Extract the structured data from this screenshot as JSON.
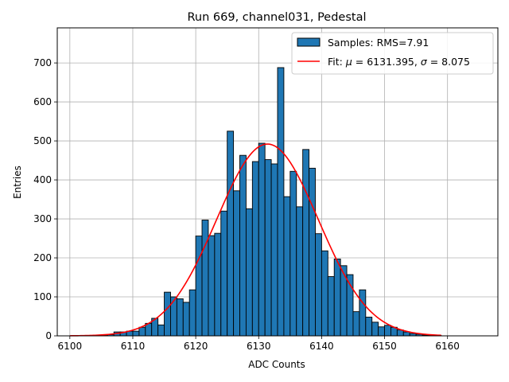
{
  "chart_data": {
    "type": "bar",
    "title": "Run 669, channel031, Pedestal",
    "xlabel": "ADC Counts",
    "ylabel": "Entries",
    "xlim": [
      6098,
      6168
    ],
    "ylim": [
      0,
      790
    ],
    "xticks": [
      6100,
      6110,
      6120,
      6130,
      6140,
      6150,
      6160
    ],
    "yticks": [
      0,
      100,
      200,
      300,
      400,
      500,
      600,
      700
    ],
    "grid": true,
    "legend_position": "top-right",
    "bin_width": 1,
    "bins": [
      6103,
      6104,
      6105,
      6106,
      6107,
      6108,
      6109,
      6110,
      6111,
      6112,
      6113,
      6114,
      6115,
      6116,
      6117,
      6118,
      6119,
      6120,
      6121,
      6122,
      6123,
      6124,
      6125,
      6126,
      6127,
      6128,
      6129,
      6130,
      6131,
      6132,
      6133,
      6134,
      6135,
      6136,
      6137,
      6138,
      6139,
      6140,
      6141,
      6142,
      6143,
      6144,
      6145,
      6146,
      6147,
      6148,
      6149,
      6150,
      6151,
      6152,
      6153,
      6154,
      6155,
      6156,
      6157,
      6158
    ],
    "counts": [
      1,
      1,
      1,
      3,
      10,
      10,
      12,
      12,
      22,
      32,
      45,
      28,
      112,
      100,
      95,
      86,
      118,
      256,
      297,
      257,
      263,
      320,
      525,
      372,
      463,
      326,
      447,
      494,
      452,
      441,
      688,
      357,
      422,
      331,
      478,
      430,
      262,
      218,
      152,
      197,
      180,
      157,
      62,
      118,
      48,
      35,
      23,
      27,
      22,
      15,
      10,
      6,
      4,
      2,
      1,
      1
    ],
    "series": [
      {
        "name": "Samples: RMS=7.91",
        "kind": "histogram",
        "color": "#1f77b4",
        "edgecolor": "#000000"
      },
      {
        "name_parts": [
          "Fit: ",
          "μ",
          " = 6131.395, ",
          "σ",
          " = 8.075"
        ],
        "kind": "gaussian_fit",
        "mu": 6131.395,
        "sigma": 8.075,
        "amplitude": 492,
        "x_range": [
          6100,
          6159
        ],
        "color": "#ff0000"
      }
    ]
  }
}
